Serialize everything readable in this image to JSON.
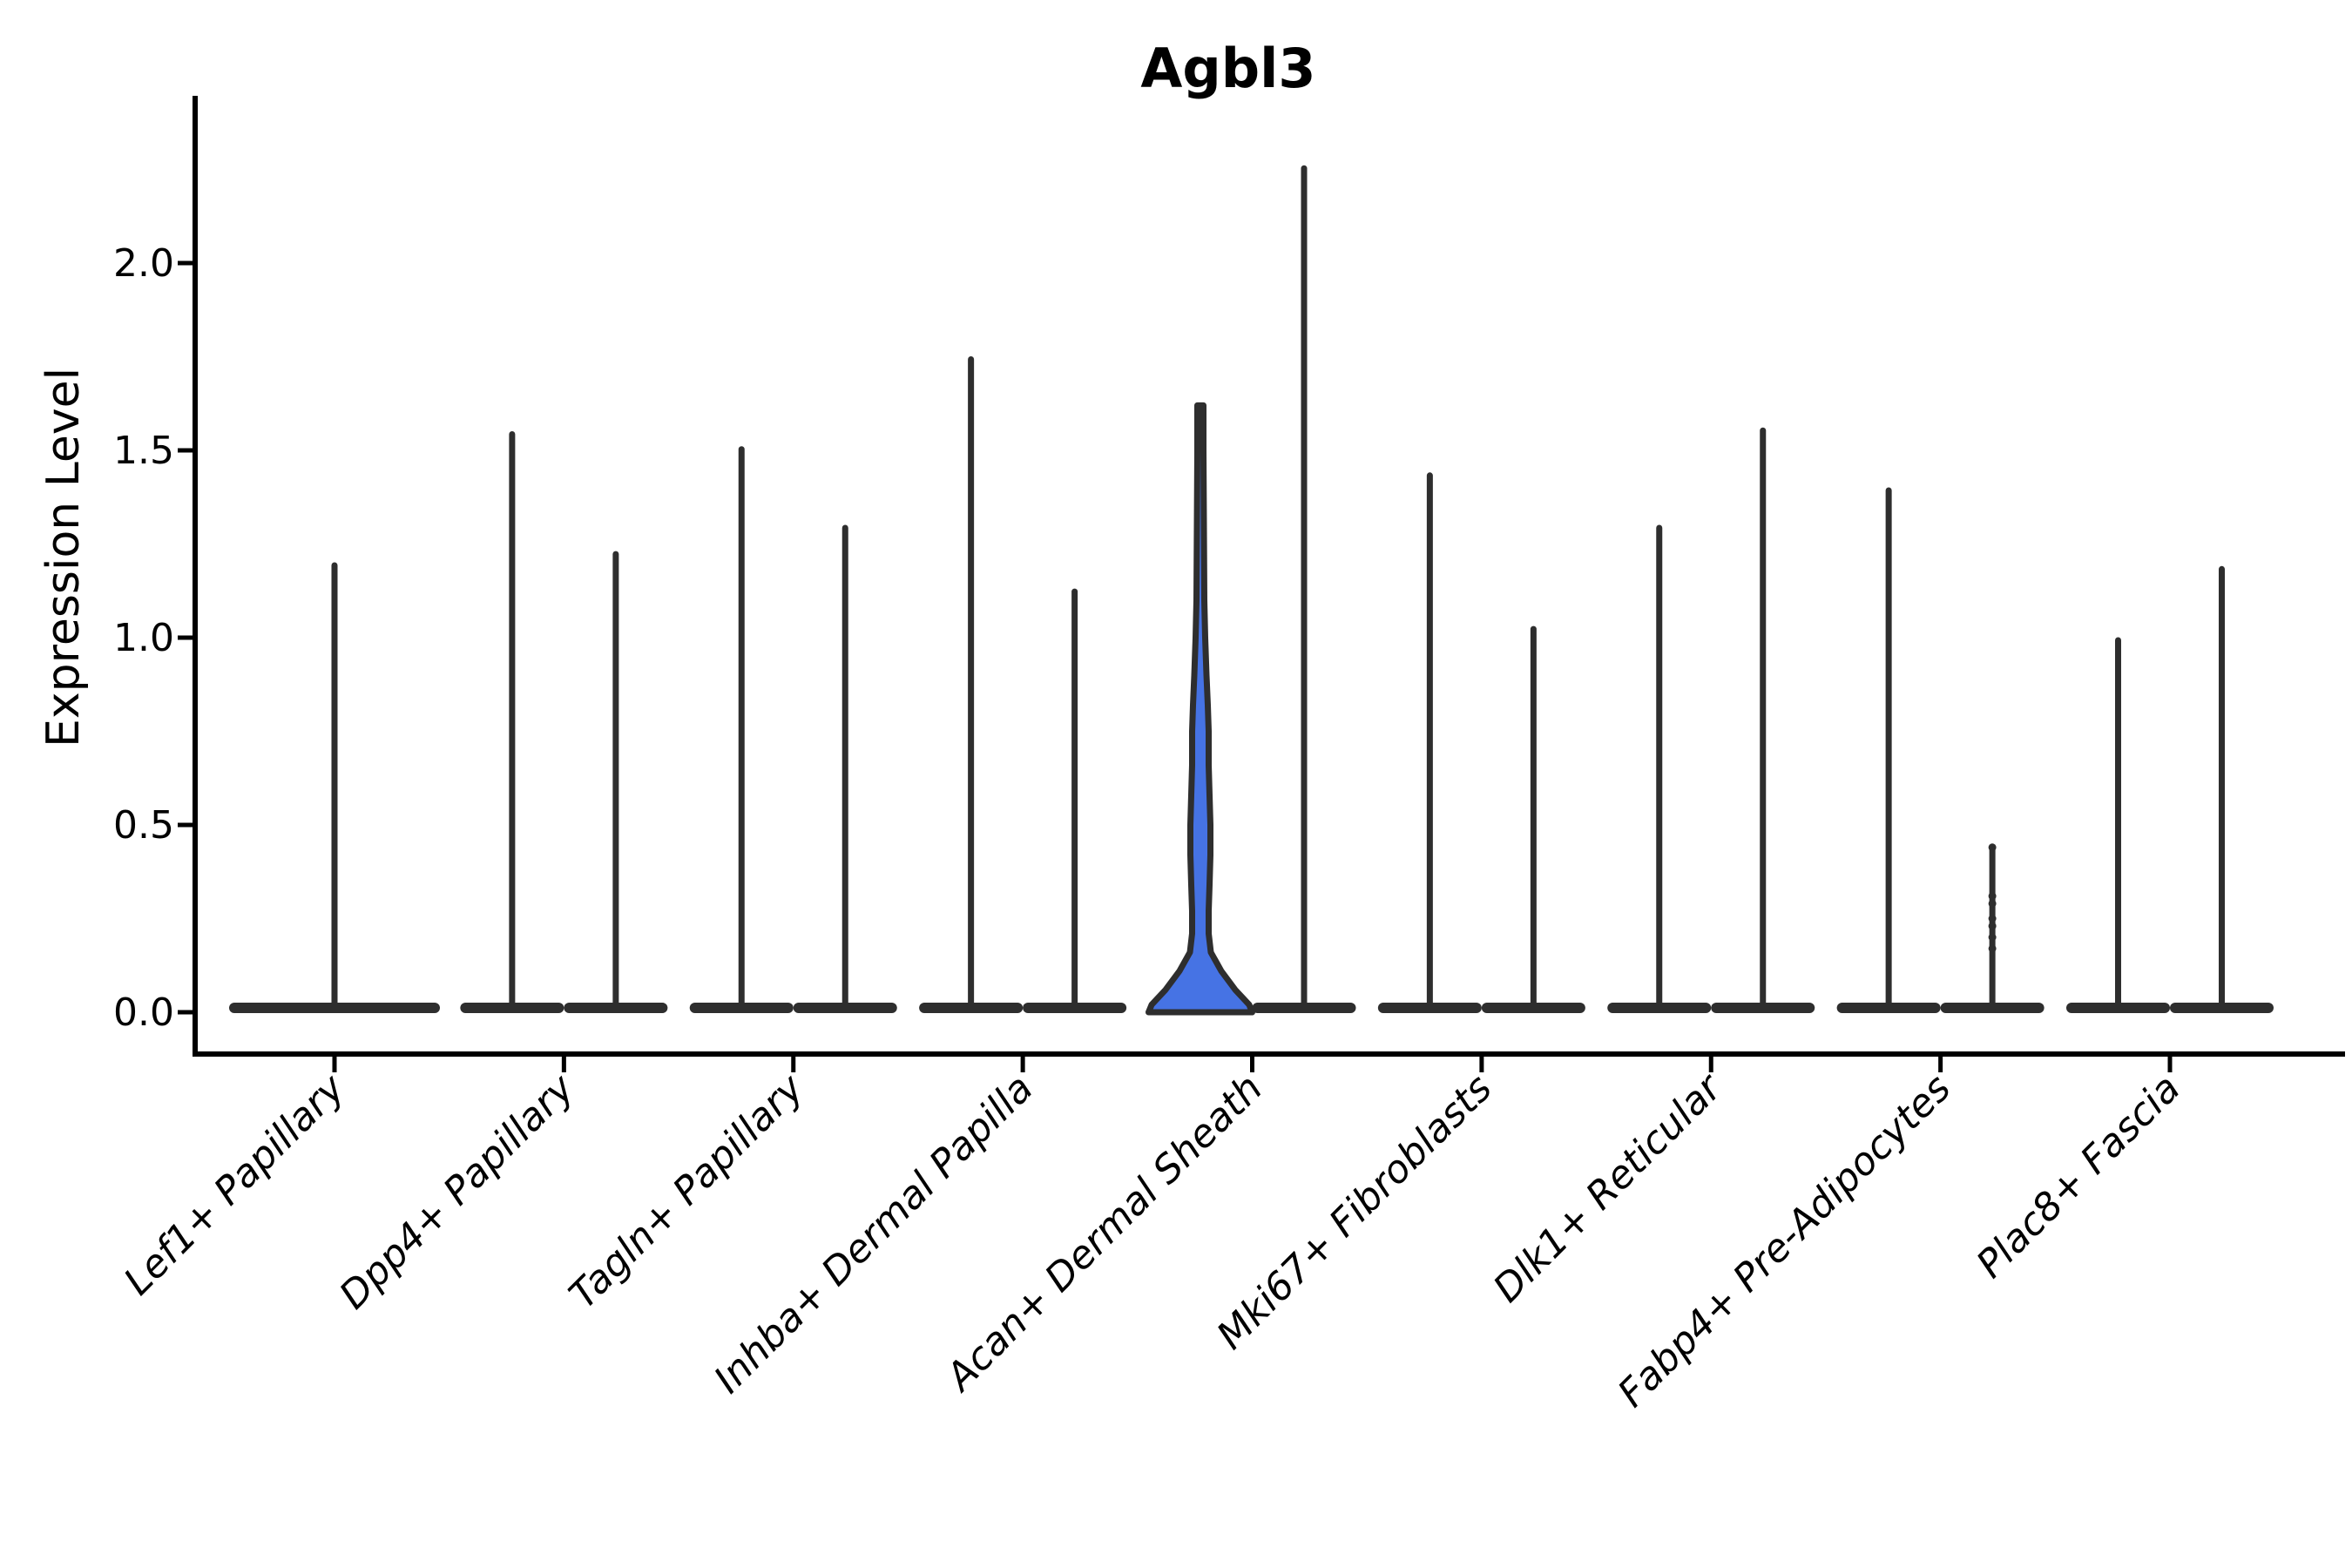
{
  "colors": {
    "highlight_fill": "#4673E4",
    "violin_outline": "#2E2E2E",
    "axis": "#000000",
    "text": "#000000",
    "background": "#FFFFFF"
  },
  "chart_data": {
    "type": "violin",
    "title": "Agbl3",
    "ylabel": "Expression Level",
    "xlabel": "",
    "ylim": [
      0,
      2.4
    ],
    "yticks": [
      0.0,
      0.5,
      1.0,
      1.5,
      2.0
    ],
    "ytick_labels": [
      "0.0",
      "0.5",
      "1.0",
      "1.5",
      "2.0"
    ],
    "grid": false,
    "legend": "none",
    "categories": [
      "Lef1+ Papillary",
      "Dpp4+ Papillary",
      "Tagln+ Papillary",
      "Inhba+ Dermal Papilla",
      "Acan+ Dermal Sheath",
      "Mki67+ Fibroblasts",
      "Dlk1+ Reticular",
      "Fabp4+ Pre-Adipocytes",
      "Plac8+ Fascia"
    ],
    "description": "Two violins per category (except Lef1+ Papillary which has a single full-width violin). Almost all violins are collapsed: a wide flat base at expression 0 with a thin spike up to the max value. The left violin of Acan+ Dermal Sheath is blue-filled with visible density body.",
    "violins": [
      {
        "category": "Lef1+ Papillary",
        "position": "center",
        "max": 1.2
      },
      {
        "category": "Dpp4+ Papillary",
        "position": "left",
        "max": 1.55
      },
      {
        "category": "Dpp4+ Papillary",
        "position": "right",
        "max": 1.23
      },
      {
        "category": "Tagln+ Papillary",
        "position": "left",
        "max": 1.51
      },
      {
        "category": "Tagln+ Papillary",
        "position": "right",
        "max": 1.3
      },
      {
        "category": "Inhba+ Dermal Papilla",
        "position": "left",
        "max": 1.75
      },
      {
        "category": "Inhba+ Dermal Papilla",
        "position": "right",
        "max": 1.13
      },
      {
        "category": "Acan+ Dermal Sheath",
        "position": "left",
        "max": 1.62,
        "filled": true,
        "profile": [
          [
            1.62,
            3.5
          ],
          [
            1.5,
            3.5
          ],
          [
            1.3,
            4
          ],
          [
            1.1,
            4.5
          ],
          [
            1.0,
            5.5
          ],
          [
            0.9,
            7
          ],
          [
            0.82,
            8.5
          ],
          [
            0.75,
            9.5
          ],
          [
            0.66,
            9.5
          ],
          [
            0.58,
            10.5
          ],
          [
            0.5,
            11.5
          ],
          [
            0.42,
            11.5
          ],
          [
            0.34,
            10.5
          ],
          [
            0.27,
            9.5
          ],
          [
            0.21,
            9.5
          ],
          [
            0.16,
            12
          ],
          [
            0.11,
            24
          ],
          [
            0.06,
            40
          ],
          [
            0.02,
            56
          ],
          [
            0.0,
            59.5
          ]
        ]
      },
      {
        "category": "Acan+ Dermal Sheath",
        "position": "right",
        "max": 2.26
      },
      {
        "category": "Mki67+ Fibroblasts",
        "position": "left",
        "max": 1.44
      },
      {
        "category": "Mki67+ Fibroblasts",
        "position": "right",
        "max": 1.03
      },
      {
        "category": "Dlk1+ Reticular",
        "position": "left",
        "max": 1.3
      },
      {
        "category": "Dlk1+ Reticular",
        "position": "right",
        "max": 1.56
      },
      {
        "category": "Fabp4+ Pre-Adipocytes",
        "position": "left",
        "max": 1.4
      },
      {
        "category": "Fabp4+ Pre-Adipocytes",
        "position": "right",
        "max": 0.44,
        "points": [
          0.44,
          0.31,
          0.29,
          0.25,
          0.23,
          0.2,
          0.17
        ]
      },
      {
        "category": "Plac8+ Fascia",
        "position": "left",
        "max": 1.0
      },
      {
        "category": "Plac8+ Fascia",
        "position": "right",
        "max": 1.19
      }
    ]
  }
}
